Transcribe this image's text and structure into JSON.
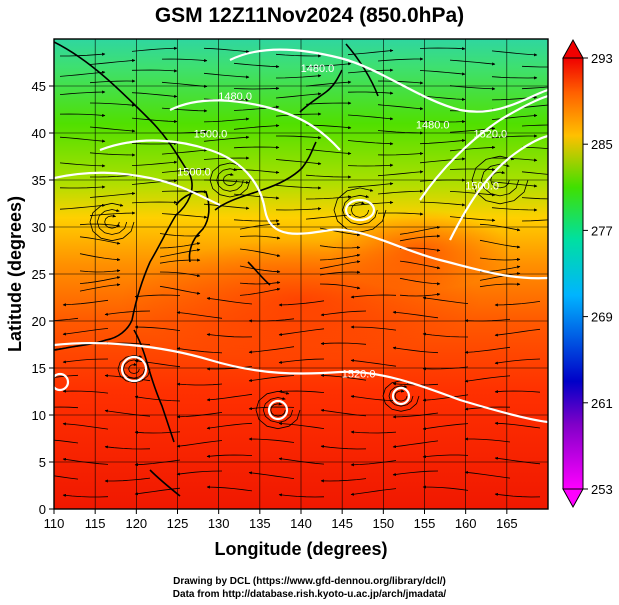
{
  "title": "GSM 12Z11Nov2024 (850.0hPa)",
  "x_axis": {
    "label": "Longitude (degrees)",
    "min": 110,
    "max": 170,
    "ticks": [
      110,
      115,
      120,
      125,
      130,
      135,
      140,
      145,
      150,
      155,
      160,
      165
    ]
  },
  "y_axis": {
    "label": "Latitude  (degrees)",
    "min": 0,
    "max": 50,
    "ticks": [
      0,
      5,
      10,
      15,
      20,
      25,
      30,
      35,
      40,
      45
    ]
  },
  "colorbar": {
    "min": 253,
    "max": 293,
    "ticks": [
      253,
      261,
      269,
      277,
      285,
      293
    ],
    "colors": [
      "#ff00ff",
      "#0000c8",
      "#00b4ff",
      "#00e0a0",
      "#40e000",
      "#ffc000",
      "#ff6000",
      "#f00000"
    ]
  },
  "contours": [
    {
      "label": "1480.0",
      "lon": 142,
      "lat": 46.5
    },
    {
      "label": "1480.0",
      "lon": 132,
      "lat": 43.5
    },
    {
      "label": "1480.0",
      "lon": 156,
      "lat": 40.5
    },
    {
      "label": "1500.0",
      "lon": 129,
      "lat": 39.5
    },
    {
      "label": "1520.0",
      "lon": 163,
      "lat": 39.5
    },
    {
      "label": "1500.0",
      "lon": 127,
      "lat": 35.5
    },
    {
      "label": "1500.0",
      "lon": 162,
      "lat": 34.0
    },
    {
      "label": "1520.0",
      "lon": 147,
      "lat": 14.0
    }
  ],
  "credits": {
    "line1": "Drawing by DCL (https://www.gfd-dennou.org/library/dcl/)",
    "line2": "Data from http://database.rish.kyoto-u.ac.jp/arch/jmadata/"
  }
}
